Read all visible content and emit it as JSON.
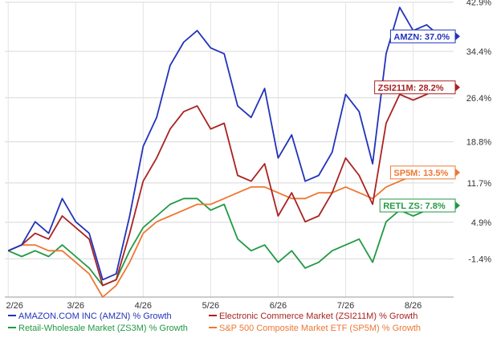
{
  "chart_data": {
    "type": "line",
    "title": "",
    "xlabel": "",
    "ylabel": "",
    "grid": true,
    "legend_placement": "bottom",
    "x_ticks": [
      "2/26",
      "3/26",
      "4/26",
      "5/26",
      "6/26",
      "7/26",
      "8/26"
    ],
    "y_ticks": [
      "42.9%",
      "34.4%",
      "26.4%",
      "18.8%",
      "11.7%",
      "4.9%",
      "-1.4%"
    ],
    "y_tick_values": [
      42.9,
      34.4,
      26.4,
      18.8,
      11.7,
      4.9,
      -1.4
    ],
    "ylim": [
      -8,
      43
    ],
    "x_tick_values": [
      0,
      1,
      2,
      3,
      4,
      5,
      6
    ],
    "xlim": [
      -0.05,
      6.6
    ],
    "series": [
      {
        "name": "AMAZON.COM INC (AMZN) % Growth",
        "color": "#2233bb",
        "end_label": "AMZN: 37.0%",
        "x": [
          0,
          0.2,
          0.4,
          0.6,
          0.8,
          1.0,
          1.2,
          1.4,
          1.6,
          1.8,
          2.0,
          2.2,
          2.4,
          2.6,
          2.8,
          3.0,
          3.2,
          3.4,
          3.6,
          3.8,
          4.0,
          4.2,
          4.4,
          4.6,
          4.8,
          5.0,
          5.2,
          5.4,
          5.6,
          5.8,
          6.0,
          6.2,
          6.4
        ],
        "y": [
          0,
          1,
          5,
          3,
          9,
          5,
          3,
          -5,
          -4,
          6,
          18,
          23,
          32,
          36,
          38,
          35,
          34,
          25,
          23,
          28,
          16,
          20,
          12,
          13,
          17,
          27,
          24,
          15,
          34,
          42,
          38,
          39,
          37
        ]
      },
      {
        "name": "Electronic Commerce Market (ZSI211M) % Growth",
        "color": "#aa2222",
        "end_label": "ZSI211M: 28.2%",
        "x": [
          0,
          0.2,
          0.4,
          0.6,
          0.8,
          1.0,
          1.2,
          1.4,
          1.6,
          1.8,
          2.0,
          2.2,
          2.4,
          2.6,
          2.8,
          3.0,
          3.2,
          3.4,
          3.6,
          3.8,
          4.0,
          4.2,
          4.4,
          4.6,
          4.8,
          5.0,
          5.2,
          5.4,
          5.6,
          5.8,
          6.0,
          6.2,
          6.4
        ],
        "y": [
          0,
          1,
          3,
          2,
          6,
          4,
          2,
          -6,
          -5,
          3,
          12,
          16,
          21,
          24,
          25,
          21,
          22,
          13,
          12,
          15,
          6,
          10,
          5,
          6,
          10,
          16,
          13,
          8,
          22,
          27,
          26,
          27,
          28.2
        ]
      },
      {
        "name": "Retail-Wholesale Market (ZS3M) % Growth",
        "color": "#229944",
        "end_label": "RETL ZS: 7.8%",
        "x": [
          0,
          0.2,
          0.4,
          0.6,
          0.8,
          1.0,
          1.2,
          1.4,
          1.6,
          1.8,
          2.0,
          2.2,
          2.4,
          2.6,
          2.8,
          3.0,
          3.2,
          3.4,
          3.6,
          3.8,
          4.0,
          4.2,
          4.4,
          4.6,
          4.8,
          5.0,
          5.2,
          5.4,
          5.6,
          5.8,
          6.0,
          6.2,
          6.4
        ],
        "y": [
          0,
          -1,
          0,
          -1,
          1,
          -1,
          -3,
          -6,
          -5,
          0,
          4,
          6,
          8,
          9,
          9,
          7,
          8,
          2,
          0,
          1,
          -2,
          0,
          -3,
          -2,
          0,
          1,
          2,
          -2,
          5,
          7,
          6,
          7,
          7.8
        ]
      },
      {
        "name": "S&P 500 Composite Market ETF (SP5M) % Growth",
        "color": "#ee7733",
        "end_label": "SP5M: 13.5%",
        "x": [
          0,
          0.2,
          0.4,
          0.6,
          0.8,
          1.0,
          1.2,
          1.4,
          1.6,
          1.8,
          2.0,
          2.2,
          2.4,
          2.6,
          2.8,
          3.0,
          3.2,
          3.4,
          3.6,
          3.8,
          4.0,
          4.2,
          4.4,
          4.6,
          4.8,
          5.0,
          5.2,
          5.4,
          5.6,
          5.8,
          6.0,
          6.2,
          6.4
        ],
        "y": [
          0,
          1,
          1,
          0,
          0,
          -2,
          -4,
          -8,
          -6,
          -2,
          3,
          5,
          6,
          7,
          8,
          8,
          9,
          10,
          11,
          11,
          10,
          9,
          9,
          10,
          10,
          11,
          10,
          9,
          11,
          12,
          13,
          13,
          13.5
        ]
      }
    ]
  }
}
